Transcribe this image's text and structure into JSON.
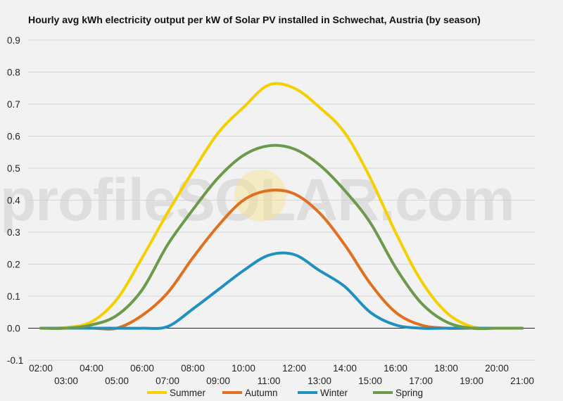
{
  "watermark": "profileSOLAR.com",
  "chart_data": {
    "type": "line",
    "title": "Hourly avg kWh electricity output per kW of Solar PV installed in Schwechat, Austria (by season)",
    "xlabel": "",
    "ylabel": "",
    "ylim": [
      -0.1,
      0.9
    ],
    "xlim": [
      1.5,
      21.5
    ],
    "yticks": [
      "0.9",
      "0.8",
      "0.7",
      "0.6",
      "0.5",
      "0.4",
      "0.3",
      "0.2",
      "0.1",
      "0.0",
      "-0.1"
    ],
    "xticks_upper": [
      "02:00",
      "04:00",
      "06:00",
      "08:00",
      "10:00",
      "12:00",
      "14:00",
      "16:00",
      "18:00",
      "20:00"
    ],
    "xticks_lower": [
      "03:00",
      "05:00",
      "07:00",
      "09:00",
      "11:00",
      "13:00",
      "15:00",
      "17:00",
      "19:00",
      "21:00"
    ],
    "grid": true,
    "legend_position": "bottom",
    "x": [
      2,
      3,
      4,
      5,
      6,
      7,
      8,
      9,
      10,
      11,
      12,
      13,
      14,
      15,
      16,
      17,
      18,
      19,
      20,
      21
    ],
    "series": [
      {
        "name": "Summer",
        "color": "#f5d000",
        "values": [
          0.0,
          0.002,
          0.02,
          0.09,
          0.22,
          0.36,
          0.49,
          0.61,
          0.69,
          0.76,
          0.75,
          0.69,
          0.61,
          0.47,
          0.3,
          0.15,
          0.05,
          0.005,
          0.0,
          0.0
        ]
      },
      {
        "name": "Autumn",
        "color": "#e07020",
        "values": [
          0.0,
          0.0,
          0.0,
          0.0,
          0.04,
          0.11,
          0.22,
          0.32,
          0.4,
          0.43,
          0.42,
          0.36,
          0.26,
          0.14,
          0.05,
          0.01,
          0.0,
          0.0,
          0.0,
          0.0
        ]
      },
      {
        "name": "Winter",
        "color": "#2090c0",
        "values": [
          0.0,
          0.0,
          0.0,
          0.0,
          0.0,
          0.005,
          0.06,
          0.12,
          0.18,
          0.228,
          0.23,
          0.18,
          0.13,
          0.05,
          0.01,
          0.0,
          0.0,
          0.0,
          0.0,
          0.0
        ]
      },
      {
        "name": "Spring",
        "color": "#6a9a4a",
        "values": [
          0.0,
          0.0,
          0.01,
          0.04,
          0.12,
          0.26,
          0.37,
          0.47,
          0.54,
          0.57,
          0.56,
          0.51,
          0.43,
          0.33,
          0.19,
          0.08,
          0.02,
          0.0,
          0.0,
          0.0
        ]
      }
    ]
  }
}
